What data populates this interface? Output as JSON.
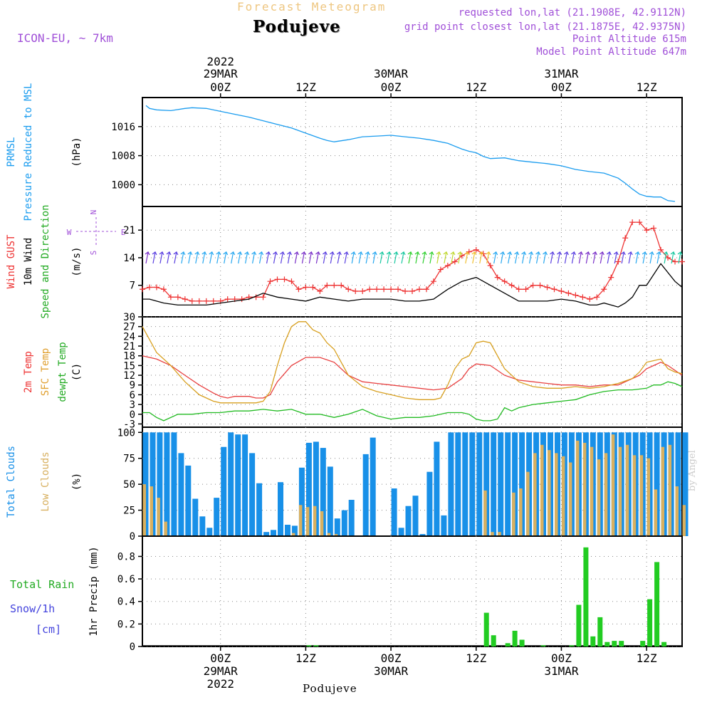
{
  "header": {
    "title": "Forecast Meteogram",
    "station": "Podujeve",
    "model": "ICON-EU, ~ 7km",
    "requested": "requested lon,lat (21.1908E, 42.9112N)",
    "grid_point": "grid point closest lon,lat (21.1875E, 42.9375N)",
    "point_altitude": "Point Altitude 615m",
    "model_altitude": "Model Point Altitude 647m",
    "bottom_station": "Podujeve",
    "credit": "by Angel"
  },
  "time_axis": {
    "top_labels": [
      {
        "line1": "2022",
        "line2": "29MAR",
        "line3": "00Z"
      },
      {
        "line1": "",
        "line2": "",
        "line3": "12Z"
      },
      {
        "line1": "",
        "line2": "30MAR",
        "line3": "00Z"
      },
      {
        "line1": "",
        "line2": "",
        "line3": "12Z"
      },
      {
        "line1": "",
        "line2": "31MAR",
        "line3": "00Z"
      },
      {
        "line1": "",
        "line2": "",
        "line3": "12Z"
      }
    ],
    "bottom_labels": [
      {
        "line1": "00Z",
        "line2": "29MAR",
        "line3": "2022"
      },
      {
        "line1": "12Z",
        "line2": "",
        "line3": ""
      },
      {
        "line1": "00Z",
        "line2": "30MAR",
        "line3": ""
      },
      {
        "line1": "12Z",
        "line2": "",
        "line3": ""
      },
      {
        "line1": "00Z",
        "line2": "31MAR",
        "line3": ""
      },
      {
        "line1": "12Z",
        "line2": "",
        "line3": ""
      }
    ],
    "tick_hours": [
      0,
      12,
      24,
      36,
      48,
      60
    ],
    "range_hours": [
      -11,
      65
    ]
  },
  "chart_data": [
    {
      "type": "line",
      "panel": "pressure",
      "ylabel_lines": [
        "PRMSL",
        "Pressure Reduced to MSL"
      ],
      "unit": "(hPa)",
      "ylim": [
        994,
        1024
      ],
      "yticks": [
        1000,
        1008,
        1016
      ],
      "grid": true,
      "series": [
        {
          "name": "PRMSL",
          "color": "#1a9cef",
          "x": [
            -10.5,
            -10,
            -9,
            -7,
            -5,
            -4,
            -2,
            0,
            2,
            4,
            6,
            8,
            10,
            12,
            14,
            15,
            16,
            18,
            20,
            22,
            24,
            26,
            28,
            30,
            32,
            34,
            35,
            36,
            37,
            38,
            40,
            42,
            44,
            46,
            48,
            50,
            52,
            54,
            56,
            57,
            58,
            59,
            60,
            61,
            62,
            63,
            64
          ],
          "y": [
            1021.8,
            1021,
            1020.6,
            1020.4,
            1021,
            1021.2,
            1021,
            1020.2,
            1019.4,
            1018.6,
            1017.6,
            1016.6,
            1015.6,
            1014.2,
            1012.8,
            1012.2,
            1011.8,
            1012.4,
            1013.2,
            1013.4,
            1013.6,
            1013.2,
            1012.8,
            1012.2,
            1011.4,
            1009.8,
            1009.2,
            1008.8,
            1007.8,
            1007.2,
            1007.4,
            1006.6,
            1006.2,
            1005.8,
            1005.2,
            1004.2,
            1003.6,
            1003.2,
            1001.8,
            1000.4,
            998.8,
            997.4,
            996.8,
            996.6,
            996.6,
            995.6,
            995.4
          ]
        }
      ]
    },
    {
      "type": "line",
      "panel": "wind",
      "ylabel_lines": [
        "Wind GUST",
        "10m Wind",
        "Speed and Direction"
      ],
      "unit": "(m/s)",
      "compass": {
        "n": "N",
        "s": "S",
        "e": "E",
        "w": "W"
      },
      "ylim": [
        -1,
        27
      ],
      "yticks": [
        7,
        14,
        21
      ],
      "grid": true,
      "series": [
        {
          "name": "Wind GUST",
          "color": "#ee3333",
          "marker": "+",
          "x": [
            -11,
            -10,
            -9,
            -8,
            -7,
            -6,
            -5,
            -4,
            -3,
            -2,
            -1,
            0,
            1,
            2,
            3,
            4,
            5,
            6,
            7,
            8,
            9,
            10,
            11,
            12,
            13,
            14,
            15,
            16,
            17,
            18,
            19,
            20,
            21,
            22,
            23,
            24,
            25,
            26,
            27,
            28,
            29,
            30,
            31,
            32,
            33,
            34,
            35,
            36,
            37,
            38,
            39,
            40,
            41,
            42,
            43,
            44,
            45,
            46,
            47,
            48,
            49,
            50,
            51,
            52,
            53,
            54,
            55,
            56,
            57,
            58,
            59,
            60,
            61,
            62,
            63,
            64,
            65
          ],
          "y": [
            6,
            6.5,
            6.5,
            6,
            4,
            4,
            3.5,
            3,
            3,
            3,
            3,
            3,
            3.5,
            3.5,
            3.5,
            4,
            4,
            4,
            8,
            8.5,
            8.5,
            8,
            6,
            6.5,
            6.5,
            5.5,
            7,
            7,
            7,
            6,
            5.5,
            5.5,
            6,
            6,
            6,
            6,
            6,
            5.5,
            5.5,
            6,
            6,
            8,
            11,
            12,
            13,
            14.5,
            15.5,
            16,
            15,
            12,
            9,
            8,
            7,
            6,
            6,
            7,
            7,
            6.5,
            6,
            5.5,
            5,
            4.5,
            4,
            3.5,
            4,
            6,
            9,
            13,
            19,
            23,
            23,
            21,
            21.5,
            16,
            14,
            13,
            13
          ]
        },
        {
          "name": "10m Wind",
          "color": "#000000",
          "x": [
            -11,
            -10,
            -9,
            -8,
            -6,
            -4,
            -2,
            0,
            2,
            4,
            6,
            8,
            10,
            12,
            14,
            16,
            18,
            20,
            22,
            24,
            26,
            28,
            30,
            32,
            34,
            36,
            38,
            40,
            41,
            42,
            44,
            46,
            48,
            50,
            51,
            52,
            53,
            54,
            55,
            56,
            57,
            58,
            59,
            60,
            62,
            64,
            65
          ],
          "y": [
            3.5,
            3.5,
            3,
            2.5,
            2,
            2,
            2,
            2.5,
            3,
            3.5,
            5,
            4,
            3.5,
            3,
            4,
            3.5,
            3,
            3.5,
            3.5,
            3.5,
            3,
            3,
            3.5,
            6,
            8,
            9,
            7,
            5,
            4,
            3,
            3,
            3,
            3.5,
            3,
            2.5,
            2,
            2,
            2.5,
            2,
            1.5,
            2.5,
            4,
            7,
            7,
            12.5,
            8,
            6.5
          ]
        }
      ],
      "barbs": [
        {
          "x_start": -10.5,
          "x_end": 64.5,
          "step": 1,
          "y": 14
        }
      ]
    },
    {
      "type": "line",
      "panel": "temperature",
      "ylabel_lines": [
        "2m Temp",
        "SFC Temp",
        "dewpt Temp"
      ],
      "unit": "(C)",
      "ylim": [
        -4,
        30
      ],
      "yticks": [
        -3,
        0,
        3,
        6,
        9,
        12,
        15,
        18,
        21,
        24,
        27,
        30
      ],
      "grid": true,
      "series": [
        {
          "name": "2m Temp",
          "color": "#e84040",
          "x": [
            -11,
            -9,
            -7,
            -5,
            -3,
            -1,
            0,
            1,
            2,
            4,
            5,
            6,
            7,
            8,
            10,
            12,
            14,
            16,
            18,
            20,
            22,
            24,
            26,
            28,
            30,
            32,
            34,
            35,
            36,
            38,
            40,
            42,
            44,
            46,
            48,
            50,
            52,
            54,
            56,
            58,
            59,
            60,
            61,
            62,
            63,
            64,
            65
          ],
          "y": [
            18,
            17,
            15,
            12,
            9,
            6.5,
            5.5,
            5,
            5.5,
            5.5,
            5,
            5,
            6,
            10,
            15,
            17.5,
            17.5,
            16,
            12,
            10,
            9.5,
            9,
            8.5,
            8,
            7.5,
            8,
            11,
            14,
            15.5,
            15,
            12,
            10.5,
            10,
            9.5,
            9,
            9,
            8.5,
            9,
            9,
            11,
            12,
            14,
            15,
            16,
            15,
            13.5,
            12
          ]
        },
        {
          "name": "SFC Temp",
          "color": "#d8a020",
          "x": [
            -11,
            -10,
            -9,
            -7,
            -5,
            -3,
            -1,
            0,
            1,
            2,
            4,
            5,
            6,
            7,
            8,
            9,
            10,
            11,
            12,
            13,
            14,
            15,
            16,
            18,
            20,
            22,
            24,
            26,
            28,
            30,
            31,
            32,
            33,
            34,
            35,
            36,
            37,
            38,
            40,
            42,
            44,
            46,
            48,
            50,
            52,
            54,
            56,
            58,
            59,
            60,
            61,
            62,
            63,
            64,
            65
          ],
          "y": [
            27,
            23,
            19,
            15,
            10,
            6,
            4,
            3.5,
            3.5,
            3.5,
            3.5,
            3.5,
            4,
            7,
            15,
            22,
            27,
            28.5,
            28.5,
            26,
            25,
            22,
            20,
            12,
            8.5,
            7,
            6,
            5,
            4.5,
            4.5,
            5,
            9,
            14,
            17,
            18,
            22,
            22.5,
            22,
            14,
            10,
            8.5,
            8,
            8,
            8.5,
            8,
            8.5,
            9.5,
            11,
            13,
            16,
            16.5,
            17,
            14,
            13,
            12.5
          ]
        },
        {
          "name": "dewpt Temp",
          "color": "#22bb22",
          "x": [
            -11,
            -10,
            -9,
            -8,
            -6,
            -4,
            -2,
            0,
            2,
            4,
            6,
            8,
            10,
            12,
            14,
            16,
            18,
            20,
            22,
            24,
            26,
            28,
            30,
            32,
            34,
            35,
            36,
            37,
            38,
            39,
            40,
            41,
            42,
            44,
            46,
            48,
            50,
            52,
            54,
            56,
            58,
            60,
            61,
            62,
            63,
            64,
            65
          ],
          "y": [
            0.5,
            0.5,
            -1,
            -2,
            0,
            0,
            0.5,
            0.5,
            1,
            1,
            1.5,
            1,
            1.5,
            0,
            0,
            -1,
            0,
            1.5,
            -0.5,
            -1.5,
            -1,
            -1,
            -0.5,
            0.5,
            0.5,
            0,
            -1.5,
            -2,
            -2,
            -1.5,
            2,
            1,
            2,
            3,
            3.5,
            4,
            4.5,
            6,
            7,
            7.5,
            7.5,
            8,
            9,
            9,
            10,
            9.5,
            8.5
          ]
        }
      ]
    },
    {
      "type": "bar",
      "panel": "clouds",
      "ylabel_lines": [
        "Total Clouds",
        "Low Clouds"
      ],
      "unit": "(%)",
      "ylim": [
        0,
        105
      ],
      "yticks": [
        0,
        25,
        50,
        75,
        100
      ],
      "grid": true,
      "x_start": -11,
      "step": 1,
      "series": [
        {
          "name": "Total Clouds",
          "color": "#1890e8",
          "values": [
            100,
            100,
            100,
            100,
            100,
            80,
            68,
            36,
            19,
            8,
            37,
            86,
            100,
            98,
            98,
            80,
            51,
            4,
            6,
            52,
            11,
            10,
            66,
            90,
            91,
            85,
            67,
            17,
            25,
            35,
            0,
            79,
            95,
            0,
            0,
            46,
            8,
            29,
            39,
            2,
            62,
            91,
            20,
            100,
            100,
            100,
            100,
            100,
            100,
            100,
            100,
            100,
            100,
            100,
            100,
            100,
            100,
            100,
            100,
            100,
            100,
            100,
            100,
            100,
            100,
            100,
            100,
            100,
            100,
            100,
            100,
            100,
            100,
            100,
            100,
            100,
            100
          ]
        },
        {
          "name": "Low Clouds",
          "color": "#d8b060",
          "values": [
            50,
            48,
            37,
            14,
            0,
            0,
            0,
            0,
            0,
            0,
            0,
            0,
            0,
            0,
            0,
            0,
            0,
            0,
            0,
            0,
            0,
            3,
            30,
            28,
            29,
            24,
            3,
            2,
            0,
            0,
            0,
            0,
            0,
            0,
            0,
            0,
            0,
            0,
            0,
            0,
            0,
            0,
            0,
            0,
            0,
            0,
            0,
            0,
            44,
            4,
            4,
            0,
            42,
            46,
            62,
            80,
            88,
            83,
            80,
            77,
            71,
            92,
            90,
            86,
            74,
            80,
            98,
            86,
            88,
            78,
            78,
            75,
            45,
            86,
            88,
            48,
            30
          ]
        }
      ]
    },
    {
      "type": "bar",
      "panel": "precip",
      "ylabel_lines": [
        "Total  Rain",
        "Snow/1h",
        "[cm]"
      ],
      "unit": "1hr Precip (mm)",
      "ylim": [
        0,
        0.98
      ],
      "yticks": [
        0,
        0.2,
        0.4,
        0.6,
        0.8
      ],
      "grid": true,
      "x_start": -11,
      "step": 1,
      "series": [
        {
          "name": "Total Rain",
          "color": "#22cc22",
          "values": [
            0,
            0,
            0,
            0,
            0,
            0,
            0,
            0,
            0,
            0,
            0,
            0,
            0,
            0,
            0,
            0,
            0,
            0,
            0,
            0,
            0,
            0,
            0,
            0.01,
            0.01,
            0,
            0,
            0,
            0,
            0,
            0,
            0,
            0,
            0,
            0,
            0,
            0,
            0,
            0,
            0,
            0,
            0,
            0,
            0,
            0,
            0,
            0,
            0,
            0.3,
            0.1,
            0,
            0.03,
            0.14,
            0.06,
            0,
            0,
            0.01,
            0,
            0,
            0,
            0.01,
            0.37,
            0.88,
            0.09,
            0.26,
            0.04,
            0.05,
            0.05,
            0,
            0,
            0.05,
            0.42,
            0.75,
            0.04,
            0
          ]
        }
      ]
    }
  ]
}
